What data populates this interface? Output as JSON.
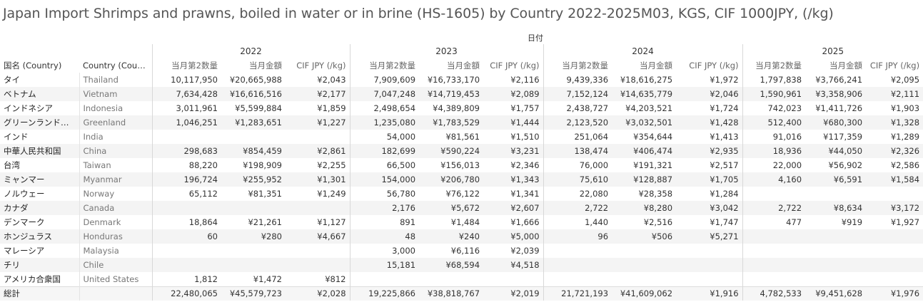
{
  "title": "Japan Import Shrimps and prawns, boiled in water or in brine (HS-1605) by Country 2022-2025M03, KGS, CIF 1000JPY, (/kg)",
  "chart_data": {
    "type": "table",
    "column_group_label": "日付",
    "row_headers": [
      "国名 (Country)",
      "Country (Count.."
    ],
    "years": [
      "2022",
      "2023",
      "2024",
      "2025"
    ],
    "measures": [
      "当月第2数量",
      "当月金額",
      "CIF JPY (/kg)"
    ],
    "rows": [
      {
        "ja": "タイ",
        "en": "Thailand",
        "values": [
          [
            "10,117,950",
            "¥20,665,988",
            "¥2,043"
          ],
          [
            "7,909,609",
            "¥16,733,170",
            "¥2,116"
          ],
          [
            "9,439,336",
            "¥18,616,275",
            "¥1,972"
          ],
          [
            "1,797,838",
            "¥3,766,241",
            "¥2,095"
          ]
        ]
      },
      {
        "ja": "ベトナム",
        "en": "Vietnam",
        "values": [
          [
            "7,634,428",
            "¥16,616,516",
            "¥2,177"
          ],
          [
            "7,047,248",
            "¥14,719,453",
            "¥2,089"
          ],
          [
            "7,152,124",
            "¥14,635,779",
            "¥2,046"
          ],
          [
            "1,590,961",
            "¥3,358,906",
            "¥2,111"
          ]
        ]
      },
      {
        "ja": "インドネシア",
        "en": "Indonesia",
        "values": [
          [
            "3,011,961",
            "¥5,599,884",
            "¥1,859"
          ],
          [
            "2,498,654",
            "¥4,389,809",
            "¥1,757"
          ],
          [
            "2,438,727",
            "¥4,203,521",
            "¥1,724"
          ],
          [
            "742,023",
            "¥1,411,726",
            "¥1,903"
          ]
        ]
      },
      {
        "ja": "グリーンランド（デン..",
        "en": "Greenland",
        "values": [
          [
            "1,046,251",
            "¥1,283,651",
            "¥1,227"
          ],
          [
            "1,235,080",
            "¥1,783,529",
            "¥1,444"
          ],
          [
            "2,123,520",
            "¥3,032,501",
            "¥1,428"
          ],
          [
            "512,400",
            "¥680,300",
            "¥1,328"
          ]
        ]
      },
      {
        "ja": "インド",
        "en": "India",
        "values": [
          [
            "",
            "",
            ""
          ],
          [
            "54,000",
            "¥81,561",
            "¥1,510"
          ],
          [
            "251,064",
            "¥354,644",
            "¥1,413"
          ],
          [
            "91,016",
            "¥117,359",
            "¥1,289"
          ]
        ]
      },
      {
        "ja": "中華人民共和国",
        "en": "China",
        "values": [
          [
            "298,683",
            "¥854,459",
            "¥2,861"
          ],
          [
            "182,699",
            "¥590,224",
            "¥3,231"
          ],
          [
            "138,474",
            "¥406,474",
            "¥2,935"
          ],
          [
            "18,936",
            "¥44,050",
            "¥2,326"
          ]
        ]
      },
      {
        "ja": "台湾",
        "en": "Taiwan",
        "values": [
          [
            "88,220",
            "¥198,909",
            "¥2,255"
          ],
          [
            "66,500",
            "¥156,013",
            "¥2,346"
          ],
          [
            "76,000",
            "¥191,321",
            "¥2,517"
          ],
          [
            "22,000",
            "¥56,902",
            "¥2,586"
          ]
        ]
      },
      {
        "ja": "ミャンマー",
        "en": "Myanmar",
        "values": [
          [
            "196,724",
            "¥255,952",
            "¥1,301"
          ],
          [
            "154,000",
            "¥206,780",
            "¥1,343"
          ],
          [
            "75,610",
            "¥128,887",
            "¥1,705"
          ],
          [
            "4,160",
            "¥6,591",
            "¥1,584"
          ]
        ]
      },
      {
        "ja": "ノルウェー",
        "en": "Norway",
        "values": [
          [
            "65,112",
            "¥81,351",
            "¥1,249"
          ],
          [
            "56,780",
            "¥76,122",
            "¥1,341"
          ],
          [
            "22,080",
            "¥28,358",
            "¥1,284"
          ],
          [
            "",
            "",
            ""
          ]
        ]
      },
      {
        "ja": "カナダ",
        "en": "Canada",
        "values": [
          [
            "",
            "",
            ""
          ],
          [
            "2,176",
            "¥5,672",
            "¥2,607"
          ],
          [
            "2,722",
            "¥8,280",
            "¥3,042"
          ],
          [
            "2,722",
            "¥8,634",
            "¥3,172"
          ]
        ]
      },
      {
        "ja": "デンマーク",
        "en": "Denmark",
        "values": [
          [
            "18,864",
            "¥21,261",
            "¥1,127"
          ],
          [
            "891",
            "¥1,484",
            "¥1,666"
          ],
          [
            "1,440",
            "¥2,516",
            "¥1,747"
          ],
          [
            "477",
            "¥919",
            "¥1,927"
          ]
        ]
      },
      {
        "ja": "ホンジュラス",
        "en": "Honduras",
        "values": [
          [
            "60",
            "¥280",
            "¥4,667"
          ],
          [
            "48",
            "¥240",
            "¥5,000"
          ],
          [
            "96",
            "¥506",
            "¥5,271"
          ],
          [
            "",
            "",
            ""
          ]
        ]
      },
      {
        "ja": "マレーシア",
        "en": "Malaysia",
        "values": [
          [
            "",
            "",
            ""
          ],
          [
            "3,000",
            "¥6,116",
            "¥2,039"
          ],
          [
            "",
            "",
            ""
          ],
          [
            "",
            "",
            ""
          ]
        ]
      },
      {
        "ja": "チリ",
        "en": "Chile",
        "values": [
          [
            "",
            "",
            ""
          ],
          [
            "15,181",
            "¥68,594",
            "¥4,518"
          ],
          [
            "",
            "",
            ""
          ],
          [
            "",
            "",
            ""
          ]
        ]
      },
      {
        "ja": "アメリカ合衆国",
        "en": "United States",
        "values": [
          [
            "1,812",
            "¥1,472",
            "¥812"
          ],
          [
            "",
            "",
            ""
          ],
          [
            "",
            "",
            ""
          ],
          [
            "",
            "",
            ""
          ]
        ]
      }
    ],
    "total": {
      "label": "総計",
      "values": [
        [
          "22,480,065",
          "¥45,579,723",
          "¥2,028"
        ],
        [
          "19,225,866",
          "¥38,818,767",
          "¥2,019"
        ],
        [
          "21,721,193",
          "¥41,609,062",
          "¥1,916"
        ],
        [
          "4,782,533",
          "¥9,451,628",
          "¥1,976"
        ]
      ]
    }
  }
}
